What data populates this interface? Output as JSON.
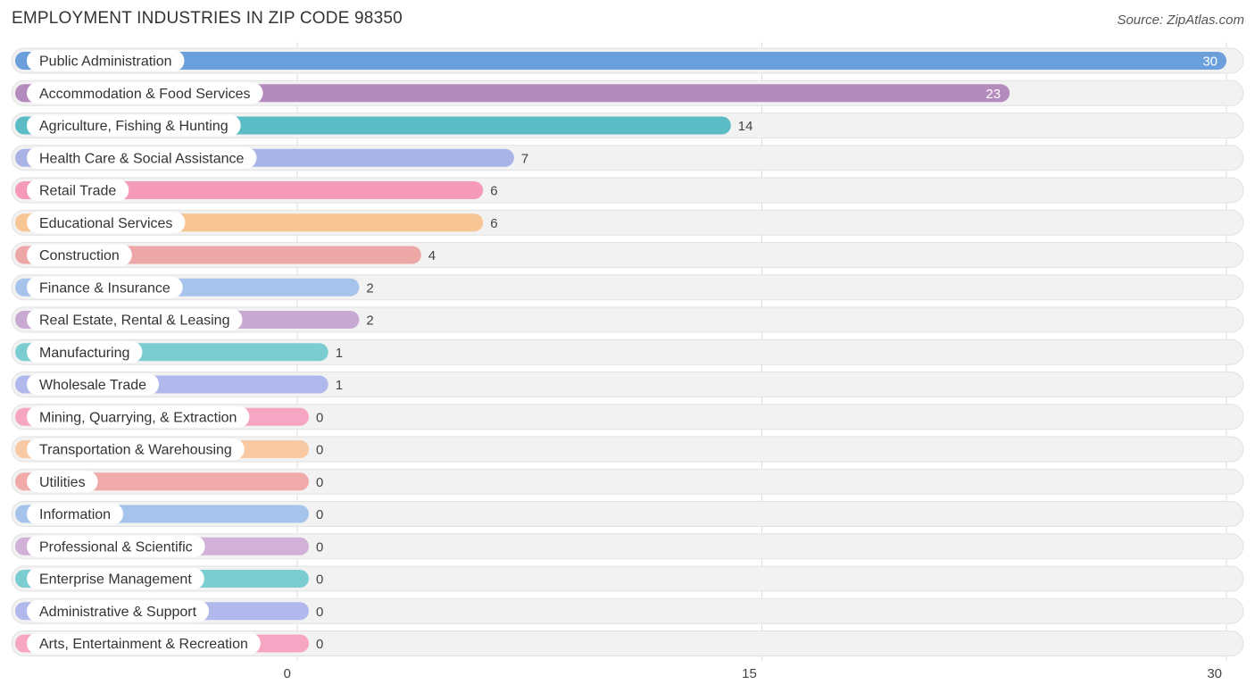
{
  "title": "EMPLOYMENT INDUSTRIES IN ZIP CODE 98350",
  "source": "Source: ZipAtlas.com",
  "chart_data": {
    "type": "bar",
    "orientation": "horizontal",
    "title": "EMPLOYMENT INDUSTRIES IN ZIP CODE 98350",
    "xlim": [
      0,
      30
    ],
    "xticks": [
      0,
      15,
      30
    ],
    "grid": true,
    "categories": [
      "Public Administration",
      "Accommodation & Food Services",
      "Agriculture, Fishing & Hunting",
      "Health Care & Social Assistance",
      "Retail Trade",
      "Educational Services",
      "Construction",
      "Finance & Insurance",
      "Real Estate, Rental & Leasing",
      "Manufacturing",
      "Wholesale Trade",
      "Mining, Quarrying, & Extraction",
      "Transportation & Warehousing",
      "Utilities",
      "Information",
      "Professional & Scientific",
      "Enterprise Management",
      "Administrative & Support",
      "Arts, Entertainment & Recreation"
    ],
    "values": [
      30,
      23,
      14,
      7,
      6,
      6,
      4,
      2,
      2,
      1,
      1,
      0,
      0,
      0,
      0,
      0,
      0,
      0,
      0
    ],
    "colors": [
      "#6a9fdc",
      "#b48bbd",
      "#5bbcc6",
      "#a9b3e6",
      "#f59ab8",
      "#f8c594",
      "#eea7a7",
      "#a6c3ec",
      "#c8a9d2",
      "#7ccdd2",
      "#b0b8ec",
      "#f6a5c2",
      "#f8c9a3",
      "#f0aaaa",
      "#a6c3ec",
      "#d2b1d8",
      "#7ccdd2",
      "#b0b8ec",
      "#f6a5c2"
    ]
  }
}
